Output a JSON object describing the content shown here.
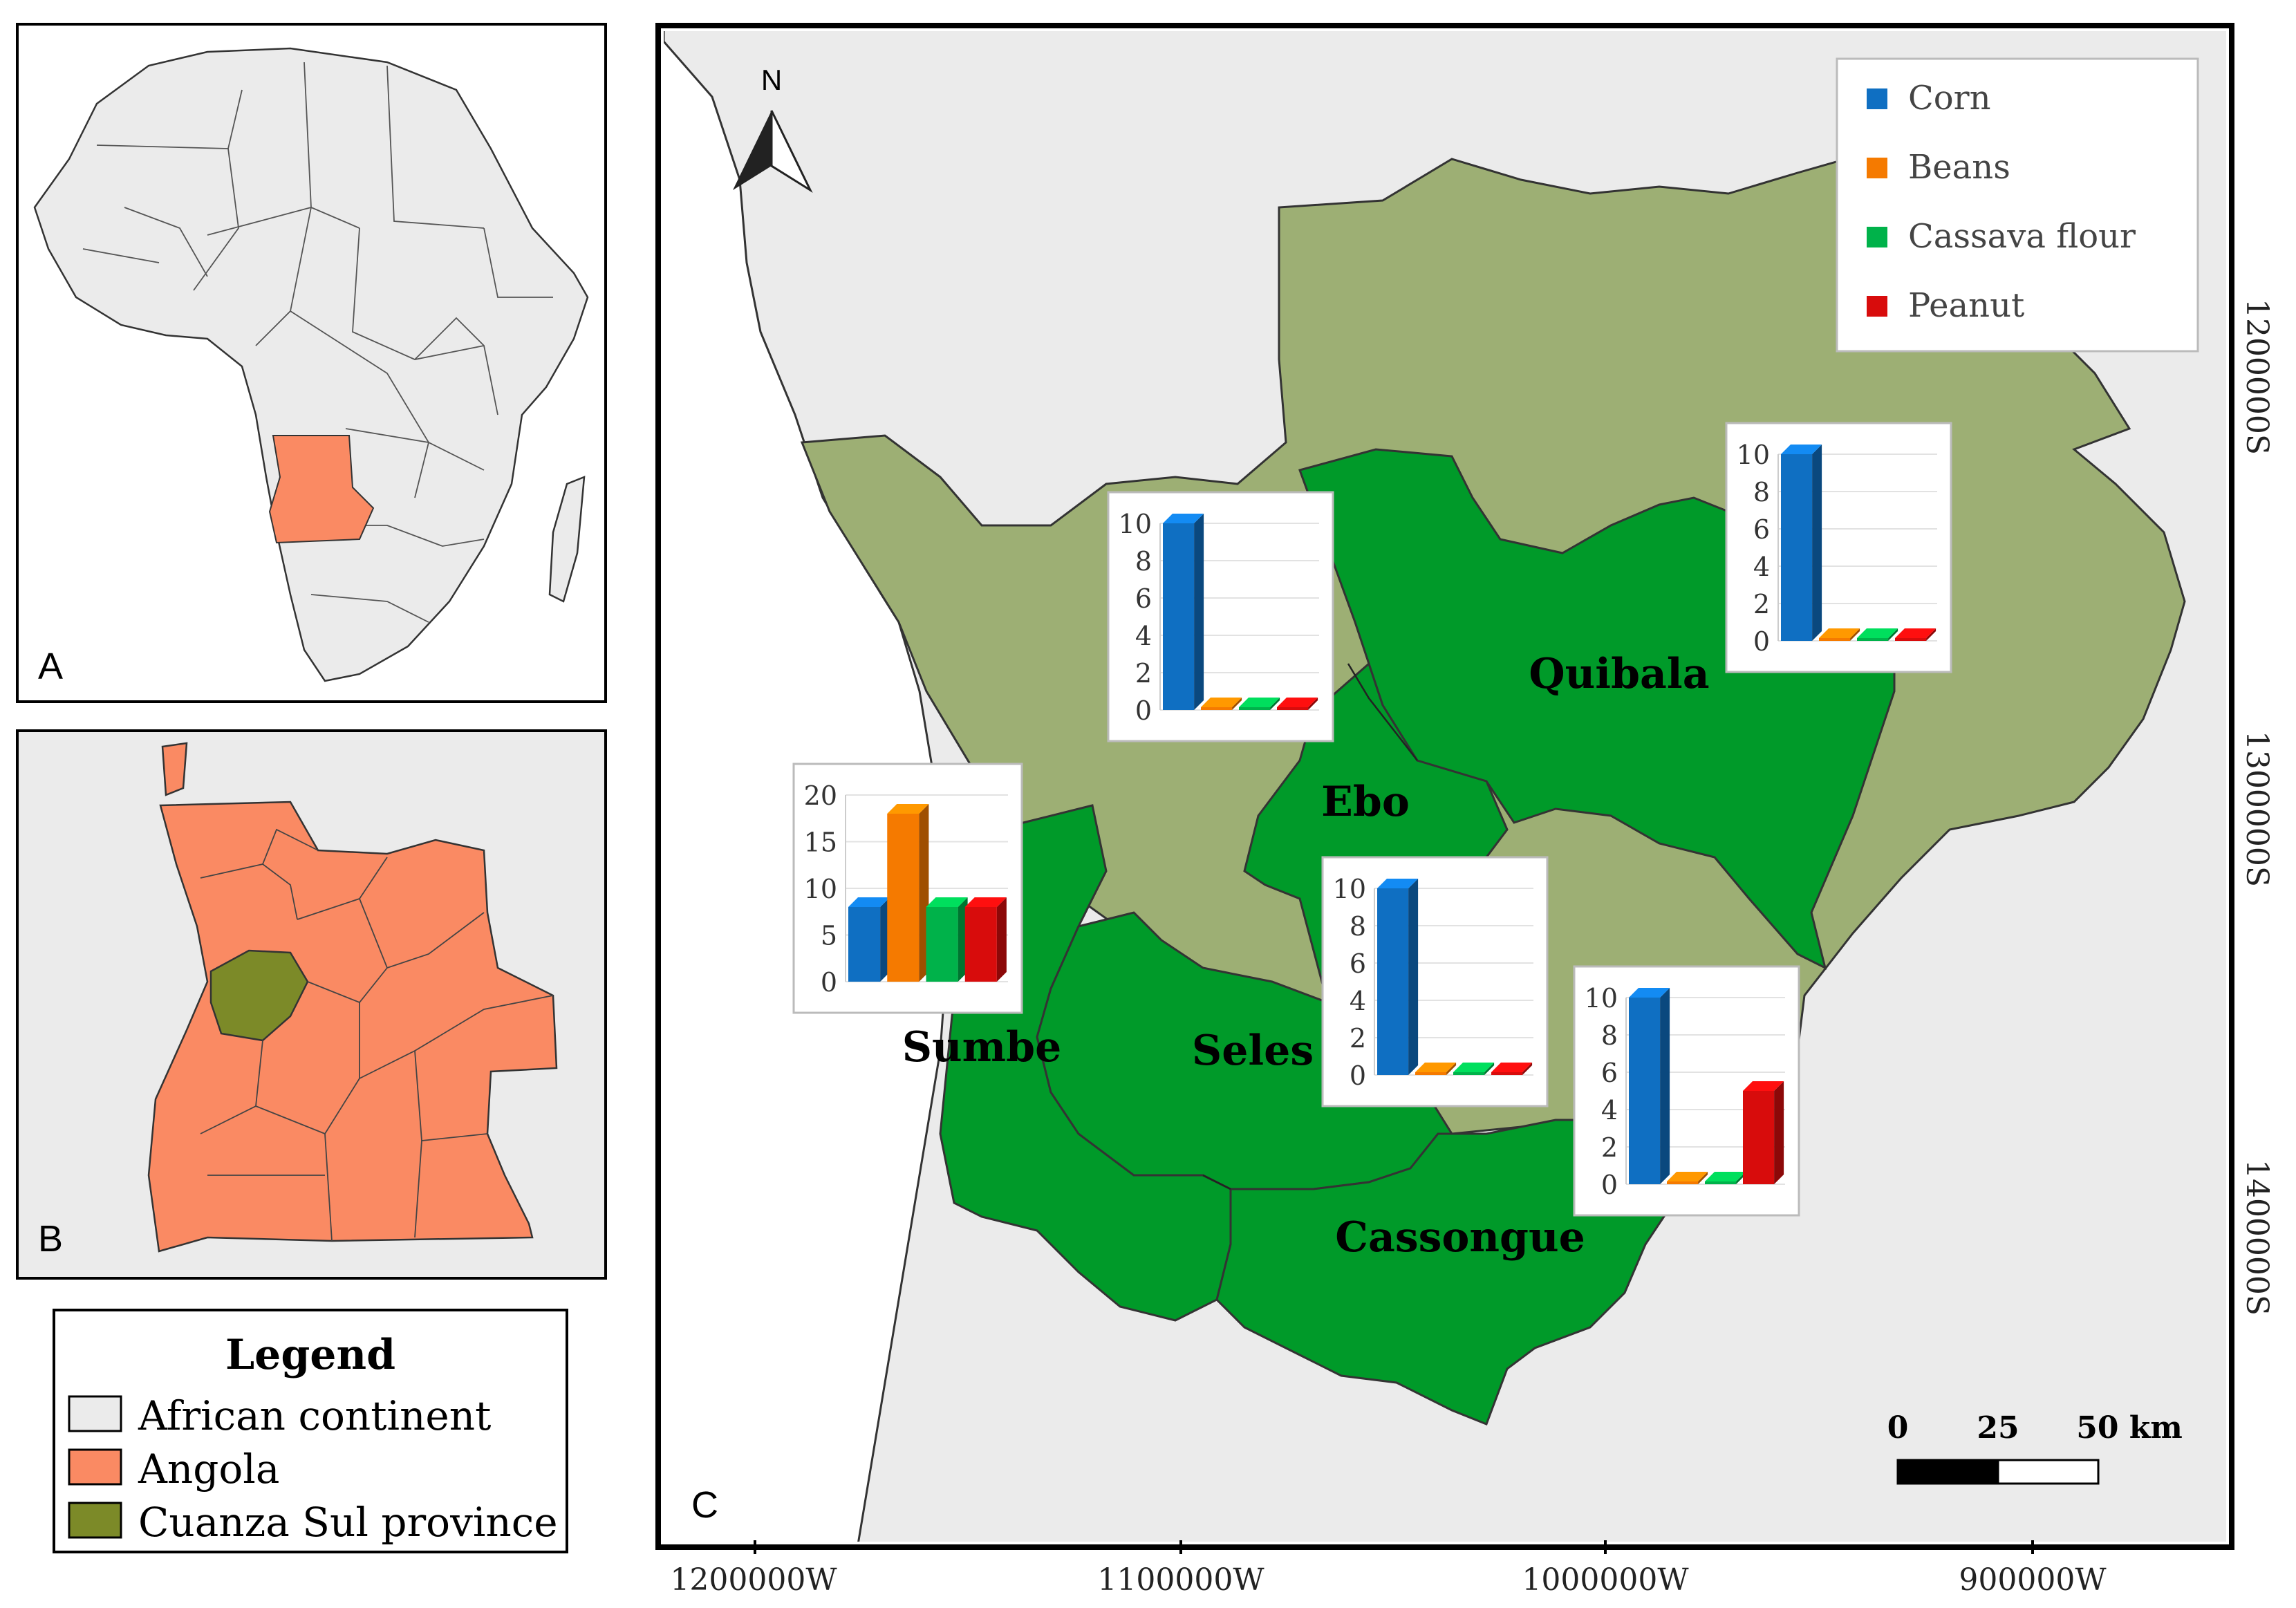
{
  "panels": {
    "a": {
      "label": "A"
    },
    "b": {
      "label": "B"
    },
    "c": {
      "label": "C"
    }
  },
  "legend": {
    "title": "Legend",
    "items": [
      {
        "label": "African continent",
        "color": "#ebebeb"
      },
      {
        "label": "Angola",
        "color": "#fa8a63"
      },
      {
        "label": "Cuanza Sul province",
        "color": "#7c8a28"
      }
    ]
  },
  "north_arrow": {
    "label": "N"
  },
  "colors": {
    "background_land": "#ebebeb",
    "province_area": "#9daf74",
    "study_municipalities": "#009a29",
    "angola": "#fa8a63",
    "cuanza_sul": "#7c8a28"
  },
  "crop_legend": [
    {
      "label": "Corn",
      "color": "#0f6fc2"
    },
    {
      "label": "Beans",
      "color": "#f57a00"
    },
    {
      "label": "Cassava flour",
      "color": "#00b24a"
    },
    {
      "label": "Peanut",
      "color": "#d80c0c"
    }
  ],
  "municipalities": [
    "Sumbe",
    "Seles",
    "Ebo",
    "Quibala",
    "Cassongue"
  ],
  "chart_data": [
    {
      "type": "bar",
      "location": "Sumbe",
      "categories": [
        "Corn",
        "Beans",
        "Cassava flour",
        "Peanut"
      ],
      "values": [
        8,
        18,
        8,
        8
      ],
      "ylim": [
        0,
        20
      ],
      "yticks": [
        "0",
        "5",
        "10",
        "15",
        "20"
      ]
    },
    {
      "type": "bar",
      "location": "Ebo",
      "categories": [
        "Corn",
        "Beans",
        "Cassava flour",
        "Peanut"
      ],
      "values": [
        10,
        0,
        0,
        0
      ],
      "ylim": [
        0,
        10
      ],
      "yticks": [
        "0",
        "2",
        "4",
        "6",
        "8",
        "10"
      ]
    },
    {
      "type": "bar",
      "location": "Quibala",
      "categories": [
        "Corn",
        "Beans",
        "Cassava flour",
        "Peanut"
      ],
      "values": [
        10,
        0,
        0,
        0
      ],
      "ylim": [
        0,
        10
      ],
      "yticks": [
        "0",
        "2",
        "4",
        "6",
        "8",
        "10"
      ]
    },
    {
      "type": "bar",
      "location": "Seles",
      "categories": [
        "Corn",
        "Beans",
        "Cassava flour",
        "Peanut"
      ],
      "values": [
        10,
        0,
        0,
        0
      ],
      "ylim": [
        0,
        10
      ],
      "yticks": [
        "0",
        "2",
        "4",
        "6",
        "8",
        "10"
      ]
    },
    {
      "type": "bar",
      "location": "Cassongue",
      "categories": [
        "Corn",
        "Beans",
        "Cassava flour",
        "Peanut"
      ],
      "values": [
        10,
        0,
        0,
        5
      ],
      "ylim": [
        0,
        10
      ],
      "yticks": [
        "0",
        "2",
        "4",
        "6",
        "8",
        "10"
      ]
    }
  ],
  "scale_bar": {
    "labels": [
      "0",
      "25",
      "50 km"
    ]
  },
  "x_axis_labels": [
    "1200000W",
    "1100000W",
    "1000000W",
    "900000W"
  ],
  "y_axis_labels": [
    "1200000S",
    "1300000S",
    "1400000S"
  ]
}
